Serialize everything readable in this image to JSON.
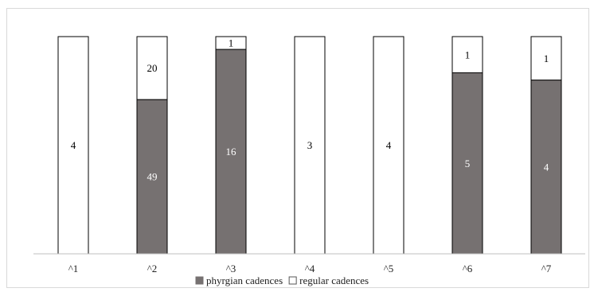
{
  "chart_data": {
    "type": "bar",
    "stacked": true,
    "normalized": true,
    "categories": [
      "^1",
      "^2",
      "^3",
      "^4",
      "^5",
      "^6",
      "^7"
    ],
    "series": [
      {
        "name": "phyrgian cadences",
        "values": [
          0,
          49,
          16,
          0,
          0,
          5,
          4
        ],
        "color": "#767171"
      },
      {
        "name": "regular cadences",
        "values": [
          4,
          20,
          1,
          3,
          4,
          1,
          1
        ],
        "color": "#ffffff"
      }
    ],
    "title": "",
    "xlabel": "",
    "ylabel": "",
    "ylim": [
      0,
      1
    ],
    "grid": false,
    "legend": "bottom"
  }
}
